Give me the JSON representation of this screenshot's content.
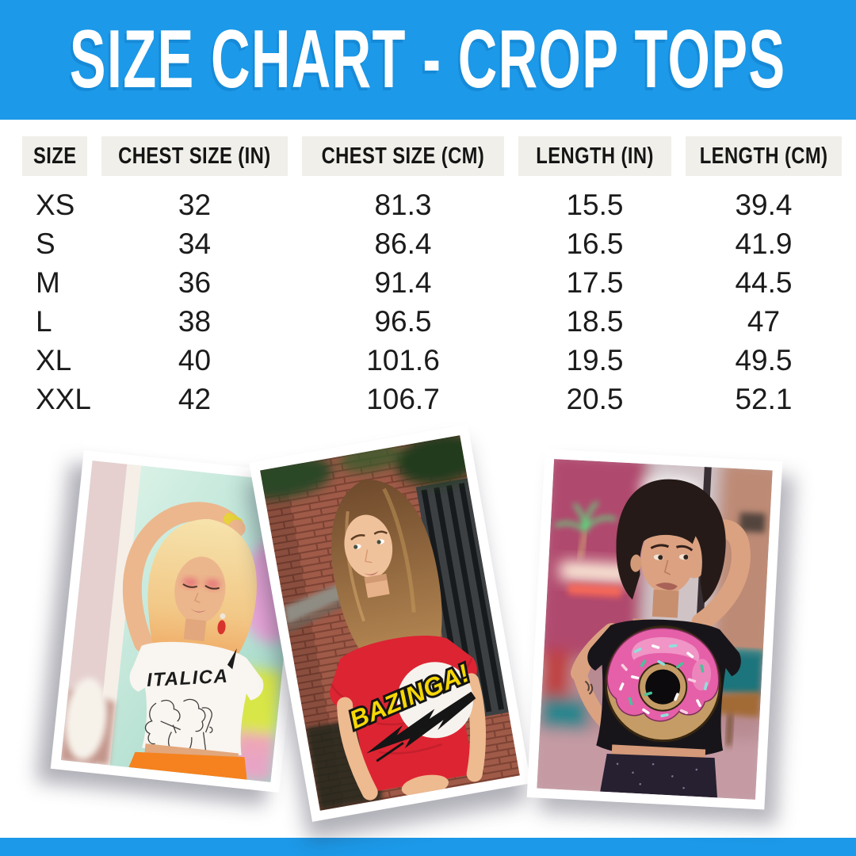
{
  "banner": {
    "title": "SIZE CHART - CROP TOPS",
    "bg_color": "#1c99e8",
    "text_color": "#ffffff"
  },
  "table": {
    "header_bg": "#f0efe9",
    "text_color": "#1b1b1b",
    "columns": [
      "SIZE",
      "CHEST SIZE (IN)",
      "CHEST SIZE (CM)",
      "LENGTH (IN)",
      "LENGTH (CM)"
    ],
    "rows": [
      [
        "XS",
        "32",
        "81.3",
        "15.5",
        "39.4"
      ],
      [
        "S",
        "34",
        "86.4",
        "16.5",
        "41.9"
      ],
      [
        "M",
        "36",
        "91.4",
        "17.5",
        "44.5"
      ],
      [
        "L",
        "38",
        "96.5",
        "18.5",
        "47"
      ],
      [
        "XL",
        "40",
        "101.6",
        "19.5",
        "49.5"
      ],
      [
        "XXL",
        "42",
        "106.7",
        "20.5",
        "52.1"
      ]
    ]
  },
  "photos": {
    "left": {
      "label": "model in white ITALICA crop top",
      "shirt_text": "ITALICA",
      "shirt_color": "#f9f5f0"
    },
    "middle": {
      "label": "model in red BAZINGA! crop top",
      "shirt_text": "BAZINGA!",
      "shirt_color": "#dd2432"
    },
    "right": {
      "label": "model in black donut crop top",
      "print": "pink donut with sprinkles",
      "shirt_color": "#18151a"
    }
  },
  "footer": {
    "bg_color": "#1c99e8"
  }
}
